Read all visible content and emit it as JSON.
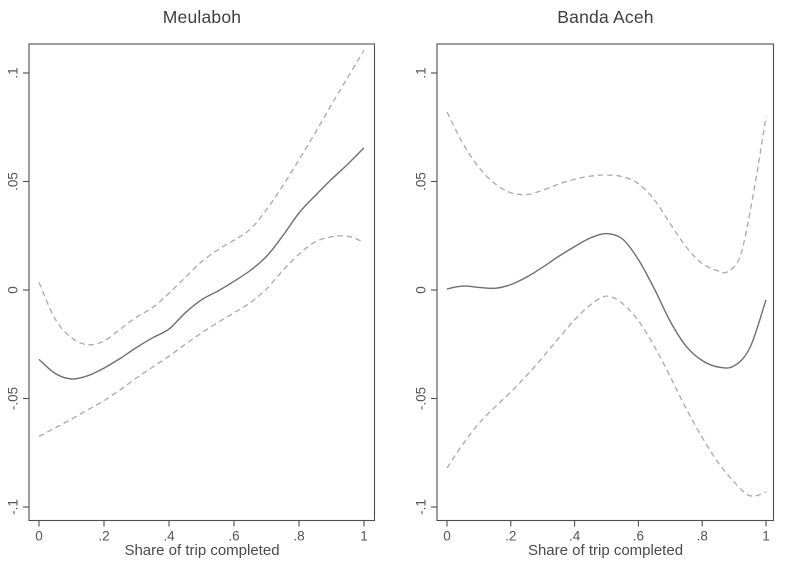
{
  "figure": {
    "kind": "two-panel smoothed regression plot with confidence bands",
    "background": "#ffffff",
    "text_color": "#4a4a4a",
    "axis_color": "#4f4f4f",
    "solid_line_color": "#6f6f6f",
    "dashed_line_color": "#a9a9a9"
  },
  "chart_data": [
    {
      "type": "line",
      "title": "Meulaboh",
      "xlabel": "Share of trip completed",
      "ylabel": "",
      "grid": false,
      "legend": null,
      "xlim": [
        -0.031,
        1.032
      ],
      "ylim": [
        -0.106,
        0.1135
      ],
      "xticks": [
        0,
        0.2,
        0.4,
        0.6,
        0.8,
        1
      ],
      "xtick_labels": [
        "0",
        ".2",
        ".4",
        ".6",
        ".8",
        "1"
      ],
      "yticks": [
        0.1,
        0.05,
        0,
        -0.05,
        -0.1
      ],
      "ytick_labels": [
        ".1",
        ".05",
        "0",
        "-.05",
        "-.1"
      ],
      "series": [
        {
          "name": "point estimate",
          "style": "solid",
          "points": [
            [
              0,
              -0.032
            ],
            [
              0.05,
              -0.0385
            ],
            [
              0.1,
              -0.041
            ],
            [
              0.15,
              -0.0395
            ],
            [
              0.2,
              -0.036
            ],
            [
              0.25,
              -0.0315
            ],
            [
              0.3,
              -0.0265
            ],
            [
              0.35,
              -0.022
            ],
            [
              0.4,
              -0.018
            ],
            [
              0.45,
              -0.0105
            ],
            [
              0.5,
              -0.0045
            ],
            [
              0.55,
              -0.0005
            ],
            [
              0.6,
              0.004
            ],
            [
              0.65,
              0.009
            ],
            [
              0.7,
              0.0155
            ],
            [
              0.75,
              0.025
            ],
            [
              0.8,
              0.0355
            ],
            [
              0.85,
              0.0435
            ],
            [
              0.9,
              0.051
            ],
            [
              0.95,
              0.058
            ],
            [
              1,
              0.0655
            ]
          ]
        },
        {
          "name": "upper confidence bound",
          "style": "dashed",
          "points": [
            [
              0,
              0.0035
            ],
            [
              0.05,
              -0.0135
            ],
            [
              0.1,
              -0.022
            ],
            [
              0.15,
              -0.0252
            ],
            [
              0.2,
              -0.0235
            ],
            [
              0.25,
              -0.018
            ],
            [
              0.3,
              -0.0125
            ],
            [
              0.35,
              -0.008
            ],
            [
              0.4,
              -0.0015
            ],
            [
              0.45,
              0.0058
            ],
            [
              0.5,
              0.013
            ],
            [
              0.55,
              0.0185
            ],
            [
              0.6,
              0.023
            ],
            [
              0.65,
              0.028
            ],
            [
              0.7,
              0.037
            ],
            [
              0.75,
              0.048
            ],
            [
              0.8,
              0.06
            ],
            [
              0.85,
              0.0725
            ],
            [
              0.9,
              0.0855
            ],
            [
              0.95,
              0.098
            ],
            [
              1,
              0.1105
            ]
          ]
        },
        {
          "name": "lower confidence bound",
          "style": "dashed",
          "points": [
            [
              0,
              -0.0675
            ],
            [
              0.05,
              -0.0635
            ],
            [
              0.1,
              -0.0595
            ],
            [
              0.15,
              -0.0552
            ],
            [
              0.2,
              -0.051
            ],
            [
              0.25,
              -0.046
            ],
            [
              0.3,
              -0.0405
            ],
            [
              0.35,
              -0.0355
            ],
            [
              0.4,
              -0.0305
            ],
            [
              0.45,
              -0.025
            ],
            [
              0.5,
              -0.0198
            ],
            [
              0.55,
              -0.015
            ],
            [
              0.6,
              -0.0105
            ],
            [
              0.65,
              -0.0058
            ],
            [
              0.7,
              0.0005
            ],
            [
              0.75,
              0.009
            ],
            [
              0.8,
              0.0165
            ],
            [
              0.85,
              0.0222
            ],
            [
              0.9,
              0.0245
            ],
            [
              0.95,
              0.0248
            ],
            [
              1,
              0.022
            ]
          ]
        }
      ]
    },
    {
      "type": "line",
      "title": "Banda Aceh",
      "xlabel": "Share of trip completed",
      "ylabel": "",
      "grid": false,
      "legend": null,
      "xlim": [
        -0.031,
        1.024
      ],
      "ylim": [
        -0.106,
        0.1135
      ],
      "xticks": [
        0,
        0.2,
        0.4,
        0.6,
        0.8,
        1
      ],
      "xtick_labels": [
        "0",
        ".2",
        ".4",
        ".6",
        ".8",
        "1"
      ],
      "yticks": [
        0.1,
        0.05,
        0,
        -0.05,
        -0.1
      ],
      "ytick_labels": [
        ".1",
        ".05",
        "0",
        "-.05",
        "-.1"
      ],
      "series": [
        {
          "name": "point estimate",
          "style": "solid",
          "points": [
            [
              0,
              0.0005
            ],
            [
              0.05,
              0.0018
            ],
            [
              0.1,
              0.0012
            ],
            [
              0.15,
              0.0008
            ],
            [
              0.2,
              0.0025
            ],
            [
              0.25,
              0.006
            ],
            [
              0.3,
              0.0105
            ],
            [
              0.35,
              0.0155
            ],
            [
              0.4,
              0.02
            ],
            [
              0.45,
              0.024
            ],
            [
              0.5,
              0.026
            ],
            [
              0.55,
              0.0235
            ],
            [
              0.6,
              0.014
            ],
            [
              0.65,
              0.0005
            ],
            [
              0.7,
              -0.0145
            ],
            [
              0.75,
              -0.026
            ],
            [
              0.8,
              -0.0325
            ],
            [
              0.85,
              -0.0355
            ],
            [
              0.9,
              -0.035
            ],
            [
              0.95,
              -0.0265
            ],
            [
              1,
              -0.0045
            ]
          ]
        },
        {
          "name": "upper confidence bound",
          "style": "dashed",
          "points": [
            [
              0,
              0.082
            ],
            [
              0.05,
              0.0675
            ],
            [
              0.1,
              0.0565
            ],
            [
              0.15,
              0.049
            ],
            [
              0.2,
              0.0448
            ],
            [
              0.25,
              0.044
            ],
            [
              0.3,
              0.046
            ],
            [
              0.35,
              0.0488
            ],
            [
              0.4,
              0.051
            ],
            [
              0.45,
              0.0525
            ],
            [
              0.5,
              0.053
            ],
            [
              0.55,
              0.0522
            ],
            [
              0.6,
              0.049
            ],
            [
              0.65,
              0.0415
            ],
            [
              0.7,
              0.0305
            ],
            [
              0.75,
              0.0198
            ],
            [
              0.8,
              0.0122
            ],
            [
              0.85,
              0.0088
            ],
            [
              0.88,
              0.0085
            ],
            [
              0.92,
              0.016
            ],
            [
              0.96,
              0.044
            ],
            [
              1,
              0.08
            ]
          ]
        },
        {
          "name": "lower confidence bound",
          "style": "dashed",
          "points": [
            [
              0,
              -0.082
            ],
            [
              0.05,
              -0.071
            ],
            [
              0.1,
              -0.0615
            ],
            [
              0.15,
              -0.054
            ],
            [
              0.2,
              -0.047
            ],
            [
              0.25,
              -0.0393
            ],
            [
              0.3,
              -0.031
            ],
            [
              0.35,
              -0.0222
            ],
            [
              0.4,
              -0.0138
            ],
            [
              0.45,
              -0.0068
            ],
            [
              0.5,
              -0.0028
            ],
            [
              0.55,
              -0.0062
            ],
            [
              0.6,
              -0.0142
            ],
            [
              0.65,
              -0.026
            ],
            [
              0.7,
              -0.04
            ],
            [
              0.75,
              -0.0548
            ],
            [
              0.8,
              -0.068
            ],
            [
              0.85,
              -0.0795
            ],
            [
              0.9,
              -0.0885
            ],
            [
              0.94,
              -0.0942
            ],
            [
              0.97,
              -0.0948
            ],
            [
              1,
              -0.093
            ]
          ]
        }
      ]
    }
  ]
}
